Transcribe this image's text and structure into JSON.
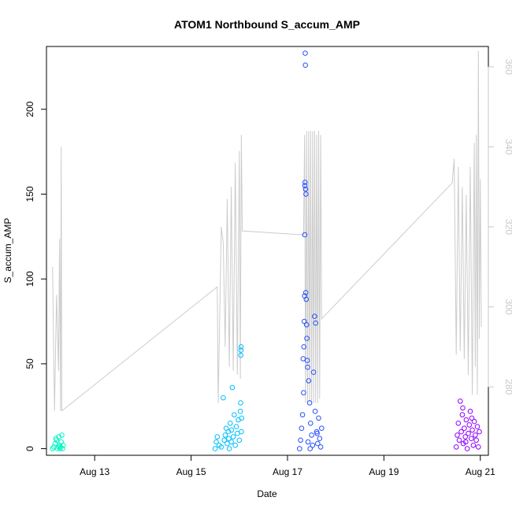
{
  "chart_data": {
    "type": "scatter",
    "title": "ATOM1 Northbound S_accum_AMP",
    "xlabel": "Date",
    "ylabel": "S_accum_AMP",
    "xlim": [
      "2023-08-12 00:00",
      "2023-08-21 04:00"
    ],
    "ylim": [
      -3.9,
      237
    ],
    "y2lim": [
      262.9,
      365.1
    ],
    "x_ticks": [
      {
        "date": "2023-08-13 00:00",
        "label": "Aug 13"
      },
      {
        "date": "2023-08-15 00:00",
        "label": "Aug 15"
      },
      {
        "date": "2023-08-17 00:00",
        "label": "Aug 17"
      },
      {
        "date": "2023-08-19 00:00",
        "label": "Aug 19"
      },
      {
        "date": "2023-08-21 00:00",
        "label": "Aug 21"
      }
    ],
    "y_ticks": [
      "0",
      "50",
      "100",
      "150",
      "200"
    ],
    "y2_ticks": [
      "280",
      "300",
      "320",
      "340",
      "360"
    ],
    "series": [
      {
        "type": "scatter",
        "axis": "left",
        "color": "#00f5c5",
        "points": [
          [
            "2023-08-12 03:00",
            0
          ],
          [
            "2023-08-12 03:40",
            1
          ],
          [
            "2023-08-12 04:20",
            3
          ],
          [
            "2023-08-12 05:00",
            5
          ],
          [
            "2023-08-12 05:30",
            0
          ],
          [
            "2023-08-12 06:00",
            1
          ],
          [
            "2023-08-12 06:10",
            7
          ],
          [
            "2023-08-12 06:30",
            2
          ],
          [
            "2023-08-12 06:50",
            0
          ],
          [
            "2023-08-12 07:20",
            4
          ],
          [
            "2023-08-12 07:40",
            8
          ],
          [
            "2023-08-12 08:00",
            0
          ],
          [
            "2023-08-12 08:20",
            2
          ],
          [
            "2023-08-12 04:40",
            6
          ],
          [
            "2023-08-12 07:00",
            1
          ]
        ]
      },
      {
        "type": "scatter",
        "axis": "left",
        "color": "#00bfff",
        "points": [
          [
            "2023-08-15 12:00",
            0
          ],
          [
            "2023-08-15 12:30",
            4
          ],
          [
            "2023-08-15 13:00",
            7
          ],
          [
            "2023-08-15 14:00",
            2
          ],
          [
            "2023-08-15 15:00",
            1
          ],
          [
            "2023-08-15 16:00",
            30
          ],
          [
            "2023-08-15 16:30",
            5
          ],
          [
            "2023-08-15 17:00",
            8
          ],
          [
            "2023-08-15 17:30",
            12
          ],
          [
            "2023-08-15 18:00",
            3
          ],
          [
            "2023-08-15 18:30",
            10
          ],
          [
            "2023-08-15 19:00",
            0
          ],
          [
            "2023-08-15 19:30",
            15
          ],
          [
            "2023-08-15 20:00",
            4
          ],
          [
            "2023-08-15 20:30",
            36
          ],
          [
            "2023-08-15 21:00",
            7
          ],
          [
            "2023-08-15 21:30",
            20
          ],
          [
            "2023-08-15 22:00",
            2
          ],
          [
            "2023-08-15 22:30",
            13
          ],
          [
            "2023-08-15 23:00",
            9
          ],
          [
            "2023-08-15 23:30",
            17
          ],
          [
            "2023-08-16 00:00",
            5
          ],
          [
            "2023-08-16 00:30",
            22
          ],
          [
            "2023-08-16 00:40",
            27
          ],
          [
            "2023-08-16 00:45",
            55
          ],
          [
            "2023-08-16 00:50",
            58
          ],
          [
            "2023-08-16 00:55",
            60
          ],
          [
            "2023-08-16 01:00",
            10
          ],
          [
            "2023-08-16 01:10",
            18
          ],
          [
            "2023-08-15 20:10",
            11
          ],
          [
            "2023-08-15 18:45",
            6
          ]
        ]
      },
      {
        "type": "scatter",
        "axis": "left",
        "color": "#2650ff",
        "points": [
          [
            "2023-08-17 06:00",
            0
          ],
          [
            "2023-08-17 06:30",
            5
          ],
          [
            "2023-08-17 07:00",
            12
          ],
          [
            "2023-08-17 07:30",
            20
          ],
          [
            "2023-08-17 08:00",
            33
          ],
          [
            "2023-08-17 08:10",
            60
          ],
          [
            "2023-08-17 08:20",
            75
          ],
          [
            "2023-08-17 08:30",
            90
          ],
          [
            "2023-08-17 08:35",
            126
          ],
          [
            "2023-08-17 08:40",
            155
          ],
          [
            "2023-08-17 08:45",
            157
          ],
          [
            "2023-08-17 08:50",
            233
          ],
          [
            "2023-08-17 08:55",
            226
          ],
          [
            "2023-08-17 09:00",
            153
          ],
          [
            "2023-08-17 09:10",
            150
          ],
          [
            "2023-08-17 09:20",
            88
          ],
          [
            "2023-08-17 09:30",
            73
          ],
          [
            "2023-08-17 09:40",
            65
          ],
          [
            "2023-08-17 09:50",
            52
          ],
          [
            "2023-08-17 10:00",
            48
          ],
          [
            "2023-08-17 10:30",
            40
          ],
          [
            "2023-08-17 11:00",
            27
          ],
          [
            "2023-08-17 11:30",
            15
          ],
          [
            "2023-08-17 12:00",
            8
          ],
          [
            "2023-08-17 12:30",
            2
          ],
          [
            "2023-08-17 13:00",
            45
          ],
          [
            "2023-08-17 13:30",
            78
          ],
          [
            "2023-08-17 14:00",
            74
          ],
          [
            "2023-08-17 14:30",
            10
          ],
          [
            "2023-08-17 15:00",
            3
          ],
          [
            "2023-08-17 15:30",
            18
          ],
          [
            "2023-08-17 16:00",
            6
          ],
          [
            "2023-08-17 16:30",
            1
          ],
          [
            "2023-08-17 17:00",
            12
          ],
          [
            "2023-08-17 07:45",
            53
          ],
          [
            "2023-08-17 09:05",
            92
          ],
          [
            "2023-08-17 10:15",
            4
          ],
          [
            "2023-08-17 11:15",
            0
          ],
          [
            "2023-08-17 13:45",
            22
          ],
          [
            "2023-08-17 14:45",
            9
          ]
        ]
      },
      {
        "type": "scatter",
        "axis": "left",
        "color": "#8f00ff",
        "points": [
          [
            "2023-08-20 12:00",
            1
          ],
          [
            "2023-08-20 12:30",
            8
          ],
          [
            "2023-08-20 13:00",
            15
          ],
          [
            "2023-08-20 13:30",
            5
          ],
          [
            "2023-08-20 14:00",
            28
          ],
          [
            "2023-08-20 14:30",
            10
          ],
          [
            "2023-08-20 15:00",
            20
          ],
          [
            "2023-08-20 15:30",
            3
          ],
          [
            "2023-08-20 16:00",
            12
          ],
          [
            "2023-08-20 16:30",
            7
          ],
          [
            "2023-08-20 17:00",
            17
          ],
          [
            "2023-08-20 17:30",
            0
          ],
          [
            "2023-08-20 18:00",
            9
          ],
          [
            "2023-08-20 18:30",
            14
          ],
          [
            "2023-08-20 19:00",
            22
          ],
          [
            "2023-08-20 19:30",
            6
          ],
          [
            "2023-08-20 20:00",
            11
          ],
          [
            "2023-08-20 20:30",
            2
          ],
          [
            "2023-08-20 21:00",
            16
          ],
          [
            "2023-08-20 21:30",
            8
          ],
          [
            "2023-08-20 22:00",
            5
          ],
          [
            "2023-08-20 22:30",
            13
          ],
          [
            "2023-08-20 23:00",
            1
          ],
          [
            "2023-08-20 23:30",
            10
          ],
          [
            "2023-08-20 15:15",
            24
          ],
          [
            "2023-08-20 16:45",
            4
          ],
          [
            "2023-08-20 19:45",
            18
          ]
        ]
      },
      {
        "type": "line",
        "axis": "right",
        "color": "#cccccc",
        "points": [
          [
            "2023-08-12 03:00",
            310
          ],
          [
            "2023-08-12 04:00",
            274
          ],
          [
            "2023-08-12 05:00",
            303
          ],
          [
            "2023-08-12 06:00",
            284
          ],
          [
            "2023-08-12 06:30",
            317
          ],
          [
            "2023-08-12 07:00",
            274
          ],
          [
            "2023-08-12 07:20",
            340
          ],
          [
            "2023-08-12 07:40",
            274
          ],
          [
            "2023-08-15 13:00",
            305
          ],
          [
            "2023-08-15 13:30",
            276
          ],
          [
            "2023-08-15 15:00",
            320
          ],
          [
            "2023-08-15 16:00",
            316
          ],
          [
            "2023-08-15 17:00",
            290
          ],
          [
            "2023-08-15 18:00",
            327
          ],
          [
            "2023-08-15 19:00",
            285
          ],
          [
            "2023-08-15 20:00",
            330
          ],
          [
            "2023-08-15 21:00",
            284
          ],
          [
            "2023-08-15 22:00",
            336
          ],
          [
            "2023-08-15 23:00",
            283
          ],
          [
            "2023-08-16 00:00",
            339
          ],
          [
            "2023-08-16 00:30",
            282
          ],
          [
            "2023-08-16 01:00",
            343
          ],
          [
            "2023-08-16 01:30",
            319
          ],
          [
            "2023-08-17 08:00",
            318
          ],
          [
            "2023-08-17 08:30",
            343
          ],
          [
            "2023-08-17 09:00",
            276
          ],
          [
            "2023-08-17 09:30",
            344
          ],
          [
            "2023-08-17 10:00",
            276
          ],
          [
            "2023-08-17 10:30",
            344
          ],
          [
            "2023-08-17 11:00",
            276
          ],
          [
            "2023-08-17 11:30",
            344
          ],
          [
            "2023-08-17 12:00",
            276
          ],
          [
            "2023-08-17 12:30",
            344
          ],
          [
            "2023-08-17 13:00",
            276
          ],
          [
            "2023-08-17 13:30",
            344
          ],
          [
            "2023-08-17 14:00",
            276
          ],
          [
            "2023-08-17 14:30",
            343
          ],
          [
            "2023-08-17 15:00",
            276
          ],
          [
            "2023-08-17 15:30",
            344
          ],
          [
            "2023-08-17 16:00",
            277
          ],
          [
            "2023-08-17 16:30",
            343
          ],
          [
            "2023-08-17 17:00",
            297
          ],
          [
            "2023-08-20 10:00",
            331
          ],
          [
            "2023-08-20 11:00",
            337
          ],
          [
            "2023-08-20 12:00",
            288
          ],
          [
            "2023-08-20 13:00",
            335
          ],
          [
            "2023-08-20 14:00",
            289
          ],
          [
            "2023-08-20 15:00",
            330
          ],
          [
            "2023-08-20 16:00",
            287
          ],
          [
            "2023-08-20 17:00",
            328
          ],
          [
            "2023-08-20 18:00",
            283
          ],
          [
            "2023-08-20 19:00",
            335
          ],
          [
            "2023-08-20 20:00",
            278
          ],
          [
            "2023-08-20 21:00",
            341
          ],
          [
            "2023-08-20 21:30",
            285
          ],
          [
            "2023-08-20 22:00",
            343
          ],
          [
            "2023-08-20 22:30",
            278
          ],
          [
            "2023-08-20 23:00",
            364
          ],
          [
            "2023-08-20 23:30",
            292
          ],
          [
            "2023-08-21 00:00",
            332
          ],
          [
            "2023-08-21 00:30",
            295
          ]
        ]
      }
    ]
  }
}
